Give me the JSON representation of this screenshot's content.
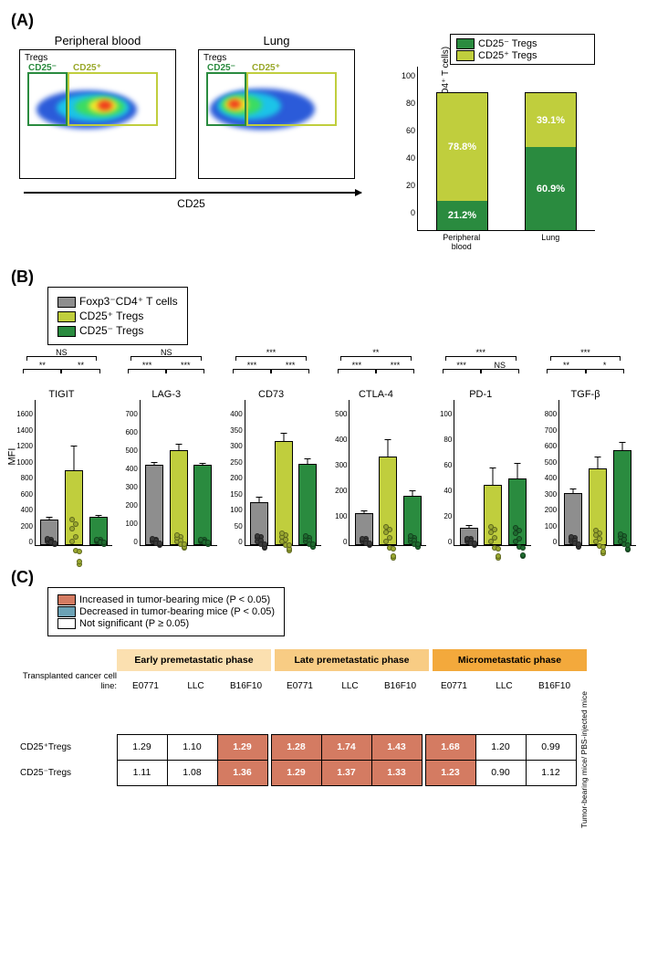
{
  "colors": {
    "cd25neg": "#2a8b3f",
    "cd25pos": "#c0ce3d",
    "foxp3": "#8e8e8e",
    "inc": "#d47b62",
    "dec": "#6ca2b5",
    "ns": "#ffffff",
    "phase1": "#fbe0b0",
    "phase2": "#f8cc84",
    "phase3": "#f3a93c"
  },
  "a": {
    "panel": "(A)",
    "titles": [
      "Peripheral blood",
      "Lung"
    ],
    "tregs": "Tregs",
    "gate_neg": "CD25⁻",
    "gate_pos": "CD25⁺",
    "xaxis": "CD25",
    "legend_pos": "CD25⁺ Tregs",
    "legend_neg": "CD25⁻ Tregs",
    "ylabel": "% of Tregs (Foxp3⁺CD4⁺ T cells)",
    "yticks": [
      0,
      20,
      40,
      60,
      80,
      100
    ],
    "bars": [
      {
        "label": "Peripheral blood",
        "pos": 78.8,
        "neg": 21.2,
        "pos_txt": "78.8%",
        "neg_txt": "21.2%"
      },
      {
        "label": "Lung",
        "pos": 39.1,
        "neg": 60.9,
        "pos_txt": "39.1%",
        "neg_txt": "60.9%"
      }
    ]
  },
  "b": {
    "panel": "(B)",
    "legend": [
      "Foxp3⁻CD4⁺ T cells",
      "CD25⁺ Tregs",
      "CD25⁻ Tregs"
    ],
    "ylabel": "MFI",
    "charts": [
      {
        "title": "TIGIT",
        "ymax": 1600,
        "ticks": [
          0,
          200,
          400,
          600,
          800,
          1000,
          1200,
          1400,
          1600
        ],
        "vals": [
          300,
          920,
          330
        ],
        "err": [
          40,
          320,
          35
        ],
        "sig": [
          "**",
          "NS",
          "**"
        ]
      },
      {
        "title": "LAG-3",
        "ymax": 700,
        "ticks": [
          0,
          100,
          200,
          300,
          400,
          500,
          600,
          700
        ],
        "vals": [
          430,
          510,
          430
        ],
        "err": [
          20,
          40,
          15
        ],
        "sig": [
          "***",
          "NS",
          "***"
        ]
      },
      {
        "title": "CD73",
        "ymax": 400,
        "ticks": [
          0,
          50,
          100,
          150,
          200,
          250,
          300,
          350,
          400
        ],
        "vals": [
          128,
          320,
          248
        ],
        "err": [
          22,
          30,
          20
        ],
        "sig": [
          "***",
          "***",
          "***"
        ]
      },
      {
        "title": "CTLA-4",
        "ymax": 500,
        "ticks": [
          0,
          100,
          200,
          300,
          400,
          500
        ],
        "vals": [
          118,
          340,
          185
        ],
        "err": [
          15,
          70,
          25
        ],
        "sig": [
          "***",
          "**",
          "***"
        ]
      },
      {
        "title": "PD-1",
        "ymax": 100,
        "ticks": [
          0,
          20,
          40,
          60,
          80,
          100
        ],
        "vals": [
          12,
          46,
          51
        ],
        "err": [
          3,
          14,
          13
        ],
        "sig": [
          "***",
          "***",
          "NS"
        ]
      },
      {
        "title": "TGF-β",
        "ymax": 800,
        "ticks": [
          0,
          100,
          200,
          300,
          400,
          500,
          600,
          700,
          800
        ],
        "vals": [
          315,
          470,
          585
        ],
        "err": [
          35,
          80,
          55
        ],
        "sig": [
          "**",
          "***",
          "*"
        ]
      }
    ]
  },
  "c": {
    "panel": "(C)",
    "legend": [
      "Increased in tumor-bearing mice (P < 0.05)",
      "Decreased in tumor-bearing mice (P < 0.05)",
      "Not significant (P ≥ 0.05)"
    ],
    "phases": [
      "Early premetastatic phase",
      "Late premetastatic phase",
      "Micrometastatic phase"
    ],
    "lines_label": "Transplanted cancer cell line:",
    "lines": [
      "E0771",
      "LLC",
      "B16F10"
    ],
    "rows": [
      "CD25⁺Tregs",
      "CD25⁻Tregs"
    ],
    "ratio": "Tumor-bearing mice/ PBS-injected mice",
    "grid": [
      [
        [
          "1.29",
          0
        ],
        [
          "1.10",
          0
        ],
        [
          "1.29",
          1
        ],
        [
          "1.28",
          1
        ],
        [
          "1.74",
          1
        ],
        [
          "1.43",
          1
        ],
        [
          "1.68",
          1
        ],
        [
          "1.20",
          0
        ],
        [
          "0.99",
          0
        ]
      ],
      [
        [
          "1.11",
          0
        ],
        [
          "1.08",
          0
        ],
        [
          "1.36",
          1
        ],
        [
          "1.29",
          1
        ],
        [
          "1.37",
          1
        ],
        [
          "1.33",
          1
        ],
        [
          "1.23",
          1
        ],
        [
          "0.90",
          0
        ],
        [
          "1.12",
          0
        ]
      ]
    ]
  }
}
